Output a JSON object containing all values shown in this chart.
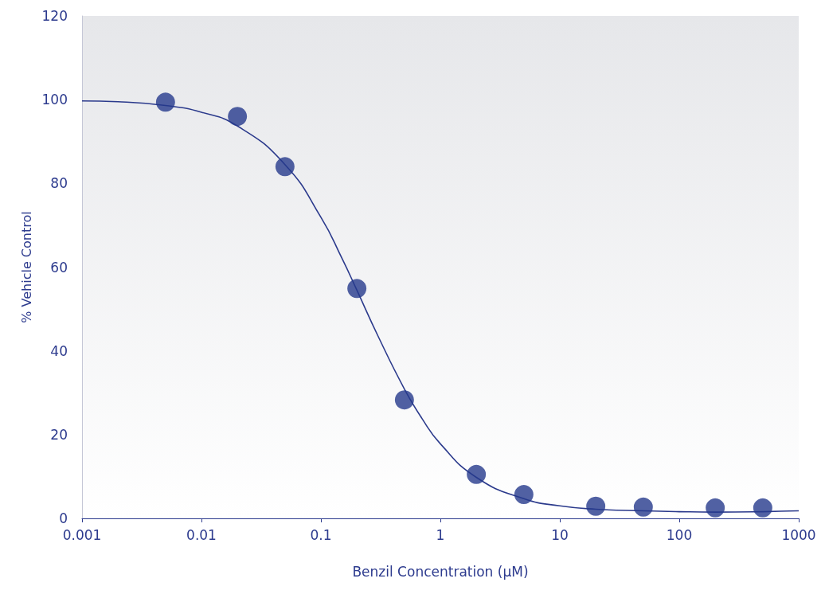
{
  "chart_data": {
    "type": "scatter",
    "xlabel": "Benzil Concentration (µM)",
    "ylabel": "% Vehicle Control",
    "log": "x",
    "grid": false,
    "xlim": [
      0.001,
      1000
    ],
    "ylim": [
      0,
      120
    ],
    "xticks": [
      0.001,
      0.01,
      0.1,
      1,
      10,
      100,
      1000
    ],
    "yticks": [
      0,
      20,
      40,
      60,
      80,
      100,
      120
    ],
    "series": [
      {
        "marker": "circle",
        "color": "#253a8c",
        "x": [
          0.005,
          0.02,
          0.05,
          0.2,
          0.5,
          2,
          5,
          20,
          50,
          200,
          500
        ],
        "values": [
          99.4,
          96,
          84,
          54.9,
          28.3,
          10.5,
          5.7,
          2.9,
          2.7,
          2.5,
          2.5
        ]
      },
      {
        "type": "line",
        "color": "#2b3a8c",
        "x": [
          0.001,
          0.002,
          0.005,
          0.01,
          0.02,
          0.05,
          0.1,
          0.15,
          0.2,
          0.3,
          0.5,
          0.7,
          1,
          2,
          5,
          10,
          20,
          50,
          100,
          200,
          500,
          1000
        ],
        "values": [
          99.7,
          99.5,
          98.6,
          97,
          93.7,
          84.5,
          71.9,
          62.1,
          54.5,
          43.6,
          30.9,
          23.9,
          17.8,
          9.8,
          4.7,
          3,
          2.2,
          1.8,
          1.6,
          1.5,
          1.6,
          1.8
        ]
      }
    ]
  }
}
